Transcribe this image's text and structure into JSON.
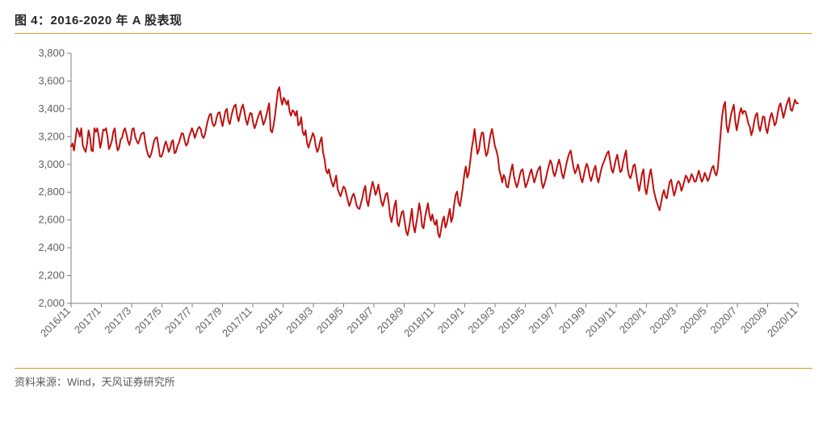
{
  "title": "图 4：2016-2020 年 A 股表现",
  "source": "资料来源：Wind，天风证券研究所",
  "rule_color": "#e39b1f",
  "chart": {
    "type": "line",
    "background_color": "#ffffff",
    "line_color": "#c01010",
    "line_width": 2,
    "axis_color": "#7f7f7f",
    "axis_text_color": "#606060",
    "tick_fontsize": 13,
    "ytick_fontsize": 13,
    "xtick_rotation": -45,
    "ylim": [
      2000,
      3800
    ],
    "ytick_step": 200,
    "x_labels": [
      "2016/11",
      "2017/1",
      "2017/3",
      "2017/5",
      "2017/7",
      "2017/9",
      "2017/11",
      "2018/1",
      "2018/3",
      "2018/5",
      "2018/7",
      "2018/9",
      "2018/11",
      "2019/1",
      "2019/3",
      "2019/5",
      "2019/7",
      "2019/9",
      "2019/11",
      "2020/1",
      "2020/3",
      "2020/5",
      "2020/7",
      "2020/9",
      "2020/11"
    ],
    "values": [
      3130,
      3150,
      3100,
      3180,
      3260,
      3240,
      3200,
      3260,
      3140,
      3110,
      3090,
      3150,
      3245,
      3200,
      3100,
      3095,
      3260,
      3235,
      3260,
      3200,
      3120,
      3170,
      3250,
      3245,
      3260,
      3200,
      3110,
      3135,
      3170,
      3235,
      3260,
      3160,
      3100,
      3120,
      3180,
      3190,
      3240,
      3260,
      3220,
      3170,
      3140,
      3180,
      3255,
      3260,
      3200,
      3170,
      3150,
      3175,
      3215,
      3225,
      3230,
      3155,
      3100,
      3065,
      3050,
      3075,
      3120,
      3170,
      3190,
      3195,
      3130,
      3060,
      3055,
      3085,
      3130,
      3165,
      3135,
      3090,
      3115,
      3160,
      3175,
      3080,
      3090,
      3130,
      3155,
      3190,
      3225,
      3220,
      3170,
      3135,
      3150,
      3200,
      3230,
      3260,
      3230,
      3190,
      3225,
      3255,
      3270,
      3255,
      3205,
      3190,
      3220,
      3275,
      3320,
      3355,
      3365,
      3300,
      3275,
      3290,
      3340,
      3370,
      3375,
      3320,
      3275,
      3330,
      3385,
      3400,
      3315,
      3290,
      3345,
      3390,
      3420,
      3430,
      3350,
      3310,
      3360,
      3405,
      3430,
      3380,
      3320,
      3285,
      3330,
      3370,
      3365,
      3300,
      3260,
      3290,
      3330,
      3360,
      3385,
      3335,
      3285,
      3310,
      3350,
      3395,
      3440,
      3245,
      3230,
      3280,
      3350,
      3440,
      3530,
      3555,
      3475,
      3430,
      3480,
      3460,
      3430,
      3460,
      3380,
      3350,
      3390,
      3380,
      3350,
      3385,
      3280,
      3290,
      3340,
      3235,
      3210,
      3245,
      3155,
      3120,
      3160,
      3190,
      3225,
      3200,
      3130,
      3090,
      3115,
      3165,
      3195,
      3085,
      3040,
      2960,
      2935,
      2965,
      2910,
      2870,
      2840,
      2875,
      2920,
      2825,
      2795,
      2770,
      2805,
      2840,
      2830,
      2785,
      2740,
      2700,
      2730,
      2770,
      2790,
      2755,
      2705,
      2685,
      2680,
      2720,
      2760,
      2815,
      2845,
      2740,
      2700,
      2770,
      2825,
      2875,
      2835,
      2780,
      2810,
      2855,
      2790,
      2730,
      2700,
      2740,
      2785,
      2795,
      2730,
      2630,
      2585,
      2640,
      2700,
      2740,
      2580,
      2555,
      2610,
      2655,
      2665,
      2590,
      2520,
      2490,
      2540,
      2610,
      2680,
      2560,
      2510,
      2575,
      2640,
      2720,
      2660,
      2555,
      2540,
      2620,
      2670,
      2720,
      2640,
      2595,
      2640,
      2590,
      2565,
      2600,
      2500,
      2475,
      2530,
      2595,
      2625,
      2545,
      2575,
      2630,
      2680,
      2585,
      2620,
      2710,
      2780,
      2805,
      2725,
      2700,
      2765,
      2840,
      2930,
      2985,
      2905,
      2935,
      3020,
      3110,
      3175,
      3255,
      3160,
      3075,
      3105,
      3180,
      3230,
      3225,
      3120,
      3060,
      3085,
      3155,
      3215,
      3255,
      3195,
      3130,
      3100,
      3055,
      2960,
      2920,
      2870,
      2925,
      2900,
      2840,
      2835,
      2900,
      2955,
      3000,
      2920,
      2870,
      2835,
      2870,
      2920,
      2955,
      2965,
      2895,
      2835,
      2860,
      2895,
      2935,
      2965,
      2915,
      2870,
      2905,
      2945,
      2970,
      2985,
      2875,
      2830,
      2860,
      2900,
      2950,
      2990,
      3030,
      3005,
      2945,
      2915,
      2950,
      2995,
      3035,
      2990,
      2930,
      2900,
      2950,
      3000,
      3045,
      3080,
      3100,
      3035,
      2975,
      2935,
      2960,
      3000,
      2955,
      2900,
      2870,
      2920,
      2970,
      3005,
      2975,
      2915,
      2880,
      2920,
      2965,
      2990,
      2910,
      2870,
      2915,
      2965,
      3000,
      3025,
      3055,
      3080,
      3095,
      3030,
      2965,
      2940,
      2985,
      3035,
      3070,
      3005,
      2945,
      2955,
      3015,
      3060,
      3100,
      2980,
      2920,
      2900,
      2935,
      2990,
      3000,
      2930,
      2860,
      2810,
      2870,
      2935,
      2965,
      2830,
      2785,
      2850,
      2920,
      2965,
      2895,
      2815,
      2770,
      2730,
      2700,
      2670,
      2720,
      2780,
      2815,
      2770,
      2755,
      2820,
      2875,
      2890,
      2825,
      2775,
      2810,
      2860,
      2880,
      2860,
      2810,
      2840,
      2880,
      2920,
      2905,
      2870,
      2895,
      2930,
      2910,
      2875,
      2880,
      2920,
      2955,
      2910,
      2875,
      2895,
      2940,
      2915,
      2880,
      2900,
      2940,
      2975,
      2990,
      2940,
      2920,
      2970,
      3100,
      3230,
      3350,
      3420,
      3450,
      3280,
      3230,
      3290,
      3355,
      3395,
      3430,
      3310,
      3245,
      3305,
      3370,
      3405,
      3365,
      3385,
      3380,
      3340,
      3290,
      3270,
      3210,
      3245,
      3310,
      3355,
      3370,
      3280,
      3240,
      3290,
      3345,
      3340,
      3260,
      3225,
      3285,
      3340,
      3370,
      3330,
      3280,
      3300,
      3360,
      3415,
      3440,
      3390,
      3335,
      3375,
      3420,
      3455,
      3480,
      3395,
      3385,
      3425,
      3465,
      3440,
      3440
    ]
  }
}
